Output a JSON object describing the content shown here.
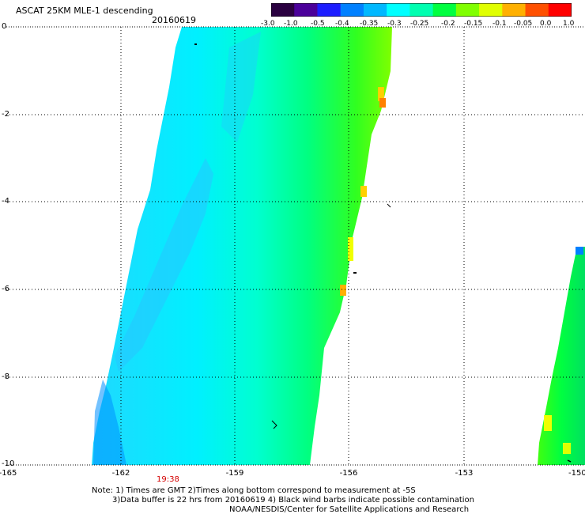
{
  "header": {
    "title": "ASCAT 25KM MLE-1 descending",
    "date": "20160619"
  },
  "colorbar": {
    "labels": [
      "-3.0",
      "-1.0",
      "-0.5",
      "-0.4",
      "-0.35",
      "-0.3",
      "-0.25",
      "-0.2",
      "-0.15",
      "-0.1",
      "-0.05",
      "0.0",
      "1.0"
    ],
    "colors": [
      "#2a0040",
      "#4b009a",
      "#1d1dff",
      "#0080ff",
      "#00b8ff",
      "#00ffff",
      "#00ffb0",
      "#00ff40",
      "#80ff00",
      "#e0ff00",
      "#ffb000",
      "#ff5000",
      "#ff0000"
    ]
  },
  "axes": {
    "x_ticks": [
      "-165",
      "-162",
      "-159",
      "-156",
      "-153",
      "-150"
    ],
    "y_ticks": [
      "0",
      "-2",
      "-4",
      "-6",
      "-8",
      "-10"
    ],
    "time_label": "19:38"
  },
  "notes": {
    "line1": "Note: 1) Times are GMT 2)Times along bottom correspond to measurement at -5S",
    "line2": "3)Data buffer is 22 hrs from 20160619 4) Black wind barbs indicate possible contamination",
    "line3": "NOAA/NESDIS/Center for Satellite Applications and Research"
  }
}
